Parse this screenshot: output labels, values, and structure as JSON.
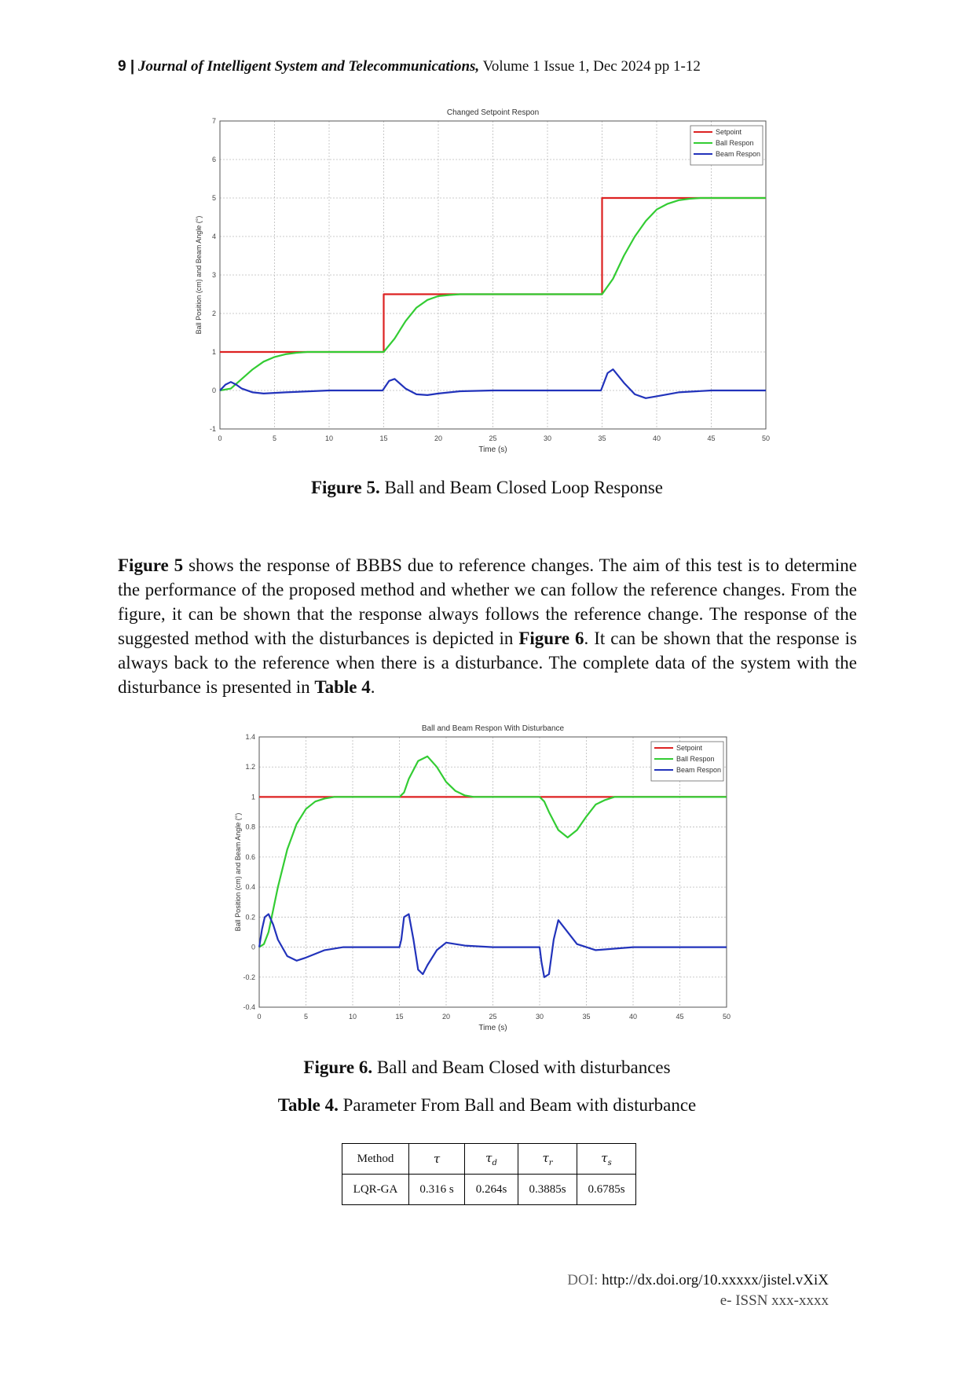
{
  "header": {
    "page_number": "9 |",
    "journal_name": "Journal of Intelligent System and Telecommunications,",
    "issue_info": "Volume 1 Issue 1, Dec 2024 pp 1-12"
  },
  "figure5": {
    "caption_label": "Figure 5.",
    "caption_text": "Ball and Beam Closed Loop Response",
    "chart_data": {
      "type": "line",
      "title": "Changed Setpoint Respon",
      "xlabel": "Time (s)",
      "ylabel": "Ball Position (cm) and Beam Angle (°)",
      "xlim": [
        0,
        50
      ],
      "ylim": [
        -1,
        7
      ],
      "xticks": [
        0,
        5,
        10,
        15,
        20,
        25,
        30,
        35,
        40,
        45,
        50
      ],
      "yticks": [
        -1,
        0,
        1,
        2,
        3,
        4,
        5,
        6,
        7
      ],
      "grid": true,
      "legend_position": "top-right",
      "series": [
        {
          "name": "Setpoint",
          "color": "#dd2222",
          "x": [
            0,
            15,
            15,
            35,
            35,
            50
          ],
          "y": [
            1,
            1,
            2.5,
            2.5,
            5,
            5
          ]
        },
        {
          "name": "Ball Respon",
          "color": "#33cc33",
          "x": [
            0,
            1,
            2,
            3,
            4,
            5,
            6,
            7,
            8,
            10,
            15,
            16,
            17,
            18,
            19,
            20,
            21,
            22,
            23,
            25,
            35,
            36,
            37,
            38,
            39,
            40,
            41,
            42,
            43,
            44,
            45,
            50
          ],
          "y": [
            0,
            0.05,
            0.3,
            0.55,
            0.75,
            0.87,
            0.94,
            0.98,
            1,
            1,
            1,
            1.35,
            1.8,
            2.15,
            2.35,
            2.45,
            2.48,
            2.5,
            2.5,
            2.5,
            2.5,
            2.9,
            3.5,
            4.0,
            4.4,
            4.7,
            4.85,
            4.94,
            4.98,
            5.0,
            5.0,
            5.0
          ]
        },
        {
          "name": "Beam Respon",
          "color": "#2233bb",
          "x": [
            0,
            0.5,
            1,
            1.5,
            2,
            3,
            4,
            6,
            10,
            14.9,
            15.5,
            16,
            17,
            18,
            19,
            20,
            22,
            25,
            34.9,
            35.5,
            36,
            37,
            38,
            39,
            40,
            42,
            45,
            50
          ],
          "y": [
            0,
            0.15,
            0.22,
            0.15,
            0.05,
            -0.05,
            -0.08,
            -0.05,
            0,
            0,
            0.25,
            0.3,
            0.05,
            -0.1,
            -0.12,
            -0.08,
            -0.02,
            0,
            0,
            0.45,
            0.55,
            0.2,
            -0.1,
            -0.2,
            -0.15,
            -0.05,
            0,
            0
          ]
        }
      ]
    }
  },
  "paragraph": {
    "s1_bold": "Figure 5",
    "s1": " shows the response of BBBS due to reference changes. The aim of this test is to determine the performance of the proposed method and whether we can follow the reference changes. From the figure, it can be shown that the response always follows the reference change. The response of the suggested method with the disturbances is depicted in ",
    "s2_bold": "Figure 6",
    "s2": ". It can be shown that the response is always back to the reference when there is a disturbance. The complete data of the system with the disturbance is presented in ",
    "s3_bold": "Table 4",
    "s3": "."
  },
  "figure6": {
    "caption_label": "Figure 6.",
    "caption_text": "Ball and Beam Closed with disturbances",
    "chart_data": {
      "type": "line",
      "title": "Ball and Beam Respon With Disturbance",
      "xlabel": "Time (s)",
      "ylabel": "Ball Position (cm) and Beam Angle (°)",
      "xlim": [
        0,
        50
      ],
      "ylim": [
        -0.4,
        1.4
      ],
      "xticks": [
        0,
        5,
        10,
        15,
        20,
        25,
        30,
        35,
        40,
        45,
        50
      ],
      "yticks": [
        -0.4,
        -0.2,
        0,
        0.2,
        0.4,
        0.6,
        0.8,
        1,
        1.2,
        1.4
      ],
      "grid": true,
      "legend_position": "top-right",
      "series": [
        {
          "name": "Setpoint",
          "color": "#dd2222",
          "x": [
            0,
            50
          ],
          "y": [
            1,
            1
          ]
        },
        {
          "name": "Ball Respon",
          "color": "#33cc33",
          "x": [
            0,
            0.5,
            1,
            2,
            3,
            4,
            5,
            6,
            7,
            8,
            9,
            15,
            15.5,
            16,
            17,
            18,
            19,
            20,
            21,
            22,
            23,
            25,
            30,
            30.5,
            31,
            32,
            33,
            34,
            35,
            36,
            37,
            38,
            40,
            50
          ],
          "y": [
            0,
            0.02,
            0.1,
            0.4,
            0.65,
            0.82,
            0.92,
            0.97,
            0.99,
            1,
            1,
            1,
            1.03,
            1.12,
            1.24,
            1.27,
            1.2,
            1.1,
            1.04,
            1.01,
            1,
            1,
            1,
            0.97,
            0.9,
            0.78,
            0.73,
            0.78,
            0.87,
            0.95,
            0.98,
            1,
            1,
            1
          ]
        },
        {
          "name": "Beam Respon",
          "color": "#2233bb",
          "x": [
            0,
            0.3,
            0.6,
            1,
            1.5,
            2,
            3,
            4,
            5,
            7,
            9,
            15,
            15.2,
            15.5,
            16,
            16.5,
            17,
            17.5,
            18,
            19,
            20,
            22,
            25,
            30,
            30.2,
            30.5,
            31,
            31.5,
            32,
            33,
            34,
            36,
            38,
            40,
            50
          ],
          "y": [
            0,
            0.12,
            0.2,
            0.22,
            0.15,
            0.05,
            -0.06,
            -0.09,
            -0.07,
            -0.02,
            0,
            0,
            0.05,
            0.2,
            0.22,
            0.05,
            -0.15,
            -0.18,
            -0.12,
            -0.02,
            0.03,
            0.01,
            0,
            0,
            -0.1,
            -0.2,
            -0.18,
            0.05,
            0.18,
            0.1,
            0.02,
            -0.02,
            -0.01,
            0,
            0
          ]
        }
      ]
    }
  },
  "table4": {
    "caption_label": "Table 4.",
    "caption_text": "Parameter From Ball and Beam with disturbance",
    "headers": [
      "Method",
      "τ",
      "τ",
      "τ",
      "τ"
    ],
    "header_subscripts": [
      "",
      "",
      "d",
      "r",
      "s"
    ],
    "row": [
      "LQR-GA",
      "0.316 s",
      "0.264s",
      "0.3885s",
      "0.6785s"
    ]
  },
  "footer": {
    "doi_label": "DOI:",
    "doi_url": "http://dx.doi.org/10.xxxxx/jistel.vXiX",
    "issn": "e- ISSN xxx-xxxx"
  }
}
